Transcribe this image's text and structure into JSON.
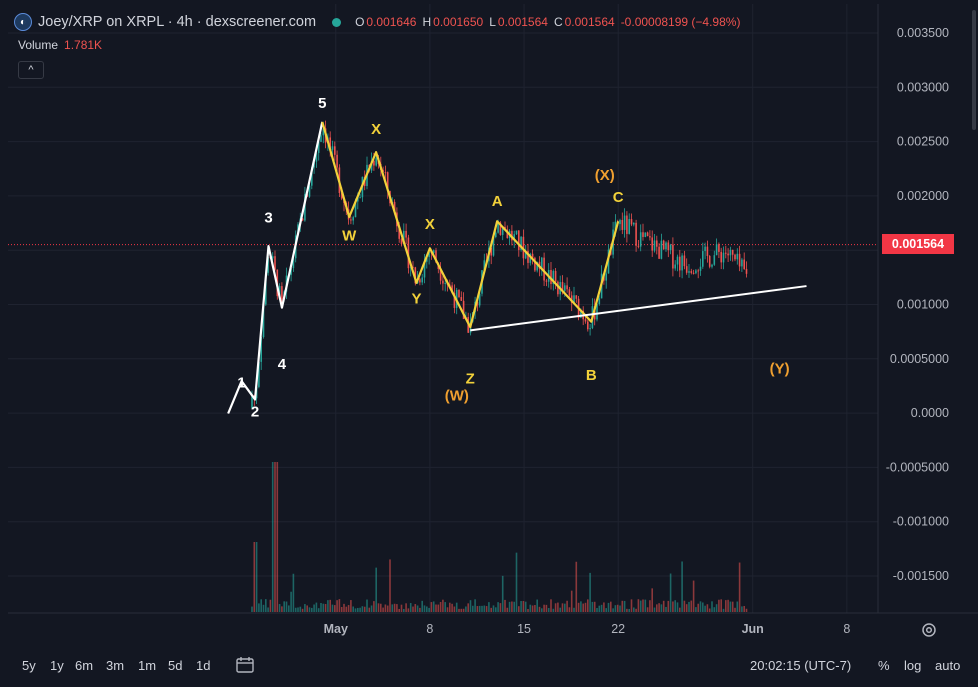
{
  "header": {
    "title": "Joey/XRP on XRPL · 4h · dexscreener.com",
    "ohlc": [
      {
        "k": "O",
        "v": "0.001646"
      },
      {
        "k": "H",
        "v": "0.001650"
      },
      {
        "k": "L",
        "v": "0.001564"
      },
      {
        "k": "C",
        "v": "0.001564"
      },
      {
        "k": "",
        "v": "-0.00008199 (−4.98%)"
      }
    ],
    "volume_label": "Volume",
    "volume_value": "1.781K",
    "collapse_glyph": "^"
  },
  "last_price": "0.001564",
  "timeframes": [
    "5y",
    "1y",
    "6m",
    "3m",
    "1m",
    "5d",
    "1d"
  ],
  "controls": {
    "timezone": "20:02:15 (UTC-7)",
    "percent": "%",
    "log": "log",
    "auto": "auto"
  },
  "colors": {
    "up": "#26a69a",
    "down": "#ef5350",
    "yellow": "#f2d13a",
    "orange": "#f0a030",
    "white": "#ffffff",
    "accent": "#f23645"
  },
  "chart_data": {
    "type": "candlestick",
    "title": "Joey/XRP on XRPL · 4h · dexscreener.com",
    "y_ticks": [
      "0.003500",
      "0.003000",
      "0.002500",
      "0.002000",
      "0.001500",
      "0.001000",
      "0.0005000",
      "0.0000",
      "-0.0005000",
      "-0.001000",
      "-0.001500"
    ],
    "x_ticks": [
      "May",
      "8",
      "15",
      "22",
      "Jun",
      "8"
    ],
    "ylim": [
      -0.00182,
      0.0036
    ],
    "current_price": 0.001564,
    "ohlc_last": {
      "open": 0.001646,
      "high": 0.00165,
      "low": 0.001564,
      "close": 0.001564
    },
    "wave_labels": [
      {
        "text": "1",
        "x": "Apr 24",
        "y": 0.00024,
        "color": "white"
      },
      {
        "text": "2",
        "x": "Apr 25",
        "y": -3e-05,
        "color": "white"
      },
      {
        "text": "3",
        "x": "Apr 26",
        "y": 0.00177,
        "color": "white"
      },
      {
        "text": "4",
        "x": "Apr 27",
        "y": 0.00041,
        "color": "white"
      },
      {
        "text": "5",
        "x": "Apr 30",
        "y": 0.00283,
        "color": "white"
      },
      {
        "text": "X",
        "x": "May 4",
        "y": 0.00259,
        "color": "yellow"
      },
      {
        "text": "W",
        "x": "May 2",
        "y": 0.0016,
        "color": "yellow"
      },
      {
        "text": "X",
        "x": "May 8",
        "y": 0.00171,
        "color": "yellow"
      },
      {
        "text": "Y",
        "x": "May 7",
        "y": 0.00102,
        "color": "yellow"
      },
      {
        "text": "Z",
        "x": "May 11",
        "y": 0.00028,
        "color": "yellow"
      },
      {
        "text": "A",
        "x": "May 13",
        "y": 0.00192,
        "color": "yellow"
      },
      {
        "text": "B",
        "x": "May 20",
        "y": 0.00031,
        "color": "yellow"
      },
      {
        "text": "C",
        "x": "May 22",
        "y": 0.00196,
        "color": "yellow"
      },
      {
        "text": "(X)",
        "x": "May 21",
        "y": 0.00216,
        "color": "orange"
      },
      {
        "text": "(W)",
        "x": "May 10",
        "y": 0.00012,
        "color": "orange"
      },
      {
        "text": "(Y)",
        "x": "Jun 3",
        "y": 0.00037,
        "color": "orange"
      }
    ],
    "white_wave_path": [
      {
        "x": "Apr 23",
        "y": 0.0
      },
      {
        "x": "Apr 24",
        "y": 0.0003
      },
      {
        "x": "Apr 25",
        "y": 0.00013
      },
      {
        "x": "Apr 26",
        "y": 0.00155
      },
      {
        "x": "Apr 27",
        "y": 0.00098
      },
      {
        "x": "Apr 30",
        "y": 0.0027
      }
    ],
    "yellow_wave_path": [
      {
        "x": "Apr 30",
        "y": 0.0027
      },
      {
        "x": "May 2",
        "y": 0.00182
      },
      {
        "x": "May 4",
        "y": 0.00242
      },
      {
        "x": "May 7",
        "y": 0.00121
      },
      {
        "x": "May 8",
        "y": 0.00153
      },
      {
        "x": "May 11",
        "y": 0.0008
      },
      {
        "x": "May 13",
        "y": 0.00178
      },
      {
        "x": "May 20",
        "y": 0.00085
      },
      {
        "x": "May 22",
        "y": 0.00178
      }
    ],
    "trendline": [
      {
        "x": "May 11",
        "y": 0.00077
      },
      {
        "x": "Jun 5",
        "y": 0.00118
      }
    ]
  }
}
